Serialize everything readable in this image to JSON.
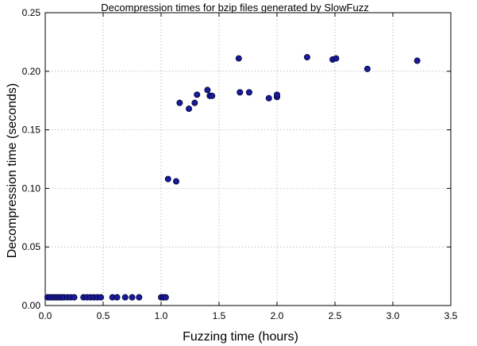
{
  "chart_data": {
    "type": "scatter",
    "title": "Decompression times for bzip files generated by SlowFuzz",
    "xlabel": "Fuzzing time (hours)",
    "ylabel": "Decompression time (seconds)",
    "xlim": [
      0,
      3.5
    ],
    "ylim": [
      0,
      0.25
    ],
    "x_ticks": [
      0,
      0.5,
      1.0,
      1.5,
      2.0,
      2.5,
      3.0,
      3.5
    ],
    "x_tick_labels": [
      "0.0",
      "0.5",
      "1.0",
      "1.5",
      "2.0",
      "2.5",
      "3.0",
      "3.5"
    ],
    "y_ticks": [
      0,
      0.05,
      0.1,
      0.15,
      0.2,
      0.25
    ],
    "y_tick_labels": [
      "0.00",
      "0.05",
      "0.10",
      "0.15",
      "0.20",
      "0.25"
    ],
    "grid": true,
    "marker_color": "#1a1a9c",
    "marker_edge_color": "#000033",
    "points": [
      {
        "x": 0.02,
        "y": 0.007
      },
      {
        "x": 0.04,
        "y": 0.007
      },
      {
        "x": 0.06,
        "y": 0.007
      },
      {
        "x": 0.08,
        "y": 0.007
      },
      {
        "x": 0.1,
        "y": 0.007
      },
      {
        "x": 0.12,
        "y": 0.007
      },
      {
        "x": 0.14,
        "y": 0.007
      },
      {
        "x": 0.16,
        "y": 0.007
      },
      {
        "x": 0.19,
        "y": 0.007
      },
      {
        "x": 0.22,
        "y": 0.007
      },
      {
        "x": 0.25,
        "y": 0.007
      },
      {
        "x": 0.33,
        "y": 0.007
      },
      {
        "x": 0.36,
        "y": 0.007
      },
      {
        "x": 0.39,
        "y": 0.007
      },
      {
        "x": 0.42,
        "y": 0.007
      },
      {
        "x": 0.45,
        "y": 0.007
      },
      {
        "x": 0.48,
        "y": 0.007
      },
      {
        "x": 0.58,
        "y": 0.007
      },
      {
        "x": 0.62,
        "y": 0.007
      },
      {
        "x": 0.69,
        "y": 0.007
      },
      {
        "x": 0.75,
        "y": 0.007
      },
      {
        "x": 0.81,
        "y": 0.007
      },
      {
        "x": 1.0,
        "y": 0.007
      },
      {
        "x": 1.02,
        "y": 0.007
      },
      {
        "x": 1.04,
        "y": 0.007
      },
      {
        "x": 1.06,
        "y": 0.108
      },
      {
        "x": 1.13,
        "y": 0.106
      },
      {
        "x": 1.16,
        "y": 0.173
      },
      {
        "x": 1.24,
        "y": 0.168
      },
      {
        "x": 1.29,
        "y": 0.173
      },
      {
        "x": 1.31,
        "y": 0.18
      },
      {
        "x": 1.4,
        "y": 0.184
      },
      {
        "x": 1.42,
        "y": 0.179
      },
      {
        "x": 1.44,
        "y": 0.179
      },
      {
        "x": 1.67,
        "y": 0.211
      },
      {
        "x": 1.68,
        "y": 0.182
      },
      {
        "x": 1.76,
        "y": 0.182
      },
      {
        "x": 1.93,
        "y": 0.177
      },
      {
        "x": 2.0,
        "y": 0.178
      },
      {
        "x": 2.0,
        "y": 0.18
      },
      {
        "x": 2.26,
        "y": 0.212
      },
      {
        "x": 2.48,
        "y": 0.21
      },
      {
        "x": 2.51,
        "y": 0.211
      },
      {
        "x": 2.78,
        "y": 0.202
      },
      {
        "x": 3.21,
        "y": 0.209
      }
    ]
  }
}
